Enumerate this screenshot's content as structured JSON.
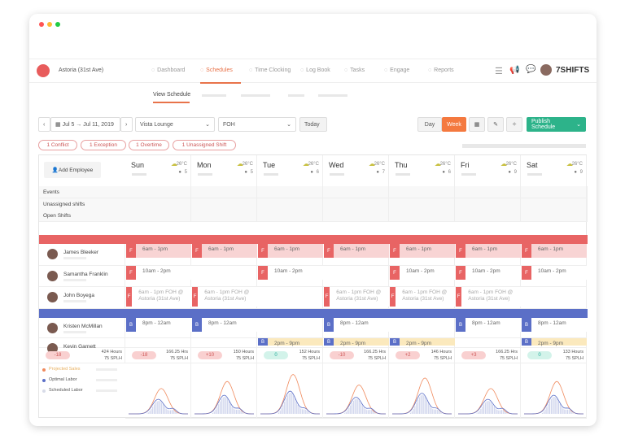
{
  "app": {
    "location": "Astoria (31st Ave)",
    "brand": "7SHIFTS"
  },
  "nav": [
    {
      "label": "Dashboard",
      "icon": "dashboard-icon"
    },
    {
      "label": "Schedules",
      "icon": "calendar-icon",
      "active": true
    },
    {
      "label": "Time Clocking",
      "icon": "stopwatch-icon"
    },
    {
      "label": "Log Book",
      "icon": "clipboard-icon"
    },
    {
      "label": "Tasks",
      "icon": "check-icon"
    },
    {
      "label": "Engage",
      "icon": "smiley-icon"
    },
    {
      "label": "Reports",
      "icon": "bar-chart-icon"
    }
  ],
  "subnav": {
    "active": "View Schedule"
  },
  "toolbar": {
    "date_range": "Jul 5 → Jul 11, 2019",
    "location": "Vista Lounge",
    "department": "FOH",
    "today": "Today",
    "day": "Day",
    "week": "Week",
    "publish": "Publish Schedule"
  },
  "alerts": [
    "1 Conflict",
    "1 Exception",
    "1 Overtime",
    "1 Unassigned Shift"
  ],
  "add_employee": "Add Employee",
  "days": [
    {
      "name": "Sun",
      "temp": "26°C",
      "staff": "5",
      "diff": "-18",
      "hours": "166.25 Hrs",
      "splh": "75 SPLH",
      "ok": false
    },
    {
      "name": "Mon",
      "temp": "26°C",
      "staff": "5",
      "diff": "+10",
      "hours": "150 Hours",
      "splh": "75 SPLH",
      "ok": false
    },
    {
      "name": "Tue",
      "temp": "26°C",
      "staff": "6",
      "diff": "0",
      "hours": "152 Hours",
      "splh": "75 SPLH",
      "ok": true
    },
    {
      "name": "Wed",
      "temp": "26°C",
      "staff": "7",
      "diff": "-10",
      "hours": "166.25 Hrs",
      "splh": "75 SPLH",
      "ok": false
    },
    {
      "name": "Thu",
      "temp": "26°C",
      "staff": "6",
      "diff": "+2",
      "hours": "146 Hours",
      "splh": "75 SPLH",
      "ok": false
    },
    {
      "name": "Fri",
      "temp": "26°C",
      "staff": "9",
      "diff": "+3",
      "hours": "166.25 Hrs",
      "splh": "75 SPLH",
      "ok": false
    },
    {
      "name": "Sat",
      "temp": "26°C",
      "staff": "9",
      "diff": "0",
      "hours": "133 Hours",
      "splh": "75 SPLH",
      "ok": true
    }
  ],
  "total": {
    "diff": "-18",
    "hours": "424 Hours",
    "splh": "75 SPLH"
  },
  "row_labels": [
    "Events",
    "Unassigned shifts",
    "Open Shifts"
  ],
  "groups": [
    {
      "color": "#e86464",
      "light": "#f8d4d4",
      "employees": [
        {
          "name": "James Bleeker",
          "shifts": [
            {
              "tag": "F",
              "text": "6am - 1pm",
              "hl": true
            },
            {
              "tag": "F",
              "text": "6am - 1pm",
              "hl": true
            },
            {
              "tag": "F",
              "text": "6am - 1pm",
              "hl": true
            },
            {
              "tag": "F",
              "text": "6am - 1pm",
              "hl": true
            },
            {
              "tag": "F",
              "text": "6am - 1pm",
              "hl": true
            },
            {
              "tag": "F",
              "text": "6am - 1pm",
              "hl": true
            },
            {
              "tag": "F",
              "text": "6am - 1pm",
              "hl": true
            }
          ]
        },
        {
          "name": "Samantha Franklin",
          "shifts": [
            {
              "tag": "F",
              "text": "10am - 2pm"
            },
            null,
            {
              "tag": "F",
              "text": "10am - 2pm"
            },
            null,
            {
              "tag": "F",
              "text": "10am - 2pm"
            },
            {
              "tag": "F",
              "text": "10am - 2pm"
            },
            {
              "tag": "F",
              "text": "10am - 2pm"
            }
          ]
        },
        {
          "name": "John Boyega",
          "shifts": [
            {
              "tag": "F",
              "text": "6am - 1pm FOH @ Astoria (31st Ave)",
              "dim": true
            },
            {
              "tag": "F",
              "text": "6am - 1pm FOH @ Astoria (31st Ave)",
              "dim": true
            },
            null,
            {
              "tag": "F",
              "text": "6am - 1pm FOH @ Astoria (31st Ave)",
              "dim": true
            },
            {
              "tag": "F",
              "text": "6am - 1pm FOH @ Astoria (31st Ave)",
              "dim": true
            },
            {
              "tag": "F",
              "text": "6am - 1pm FOH @ Astoria (31st Ave)",
              "dim": true
            },
            null
          ]
        }
      ]
    },
    {
      "color": "#5b6fc7",
      "light": "#fbe9bd",
      "employees": [
        {
          "name": "Kristen McMillan",
          "shifts": [
            {
              "tag": "B",
              "text": "8pm - 12am"
            },
            {
              "tag": "B",
              "text": "8pm - 12am"
            },
            null,
            {
              "tag": "B",
              "text": "8pm - 12am"
            },
            null,
            {
              "tag": "B",
              "text": "8pm - 12am"
            },
            {
              "tag": "B",
              "text": "8pm - 12am"
            }
          ]
        },
        {
          "name": "Kevin Garnett",
          "shifts": [
            null,
            null,
            {
              "tag": "B",
              "text": "2pm - 9pm",
              "hl": true
            },
            {
              "tag": "B",
              "text": "2pm - 9pm",
              "hl": true
            },
            {
              "tag": "B",
              "text": "2pm - 9pm",
              "hl": true
            },
            null,
            {
              "tag": "B",
              "text": "2pm - 9pm",
              "hl": true
            }
          ]
        }
      ]
    }
  ],
  "legend": [
    {
      "label": "Projected Sales",
      "color": "#f08a5d"
    },
    {
      "label": "Optimal Labor",
      "color": "#5b6fc7"
    },
    {
      "label": "Scheduled Labor",
      "color": "#d8dbe8"
    }
  ],
  "colors": {
    "accent": "#e8734a",
    "publish": "#2db38a",
    "red": "#e86464",
    "blue": "#5b6fc7"
  }
}
